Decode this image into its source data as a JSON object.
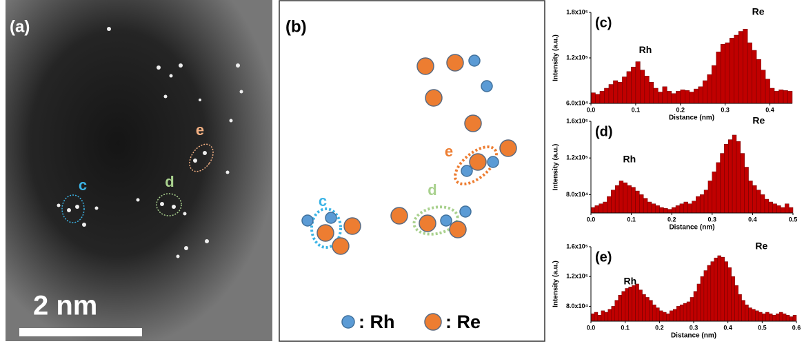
{
  "panel_a": {
    "label": "(a)",
    "ellipse_labels": [
      "c",
      "d",
      "e"
    ],
    "scale_bar": "2 nm"
  },
  "panel_b": {
    "label": "(b)",
    "ellipse_labels": [
      "c",
      "d",
      "e"
    ],
    "legend": [
      ": Rh",
      ": Re"
    ]
  },
  "chart_data": [
    {
      "type": "histogram",
      "label": "(c)",
      "xlabel": "Distance (nm)",
      "ylabel": "Intensity (a.u.)",
      "annotations": [
        "Rh",
        "Re"
      ],
      "color": "#c00000",
      "bins": [
        0,
        0.01,
        0.02,
        0.03,
        0.04,
        0.05,
        0.06,
        0.07,
        0.08,
        0.09,
        0.1,
        0.11,
        0.12,
        0.13,
        0.14,
        0.15,
        0.16,
        0.17,
        0.18,
        0.19,
        0.2,
        0.21,
        0.22,
        0.23,
        0.24,
        0.25,
        0.26,
        0.27,
        0.28,
        0.29,
        0.3,
        0.31,
        0.32,
        0.33,
        0.34,
        0.35,
        0.36,
        0.37,
        0.38,
        0.39,
        0.4,
        0.41,
        0.42,
        0.43,
        0.44,
        0.45
      ],
      "values": [
        74000,
        72000,
        76000,
        80000,
        85000,
        90000,
        88000,
        95000,
        102000,
        108000,
        115000,
        104000,
        96000,
        88000,
        80000,
        75000,
        82000,
        76000,
        73000,
        76000,
        78000,
        77000,
        75000,
        79000,
        82000,
        90000,
        98000,
        110000,
        128000,
        138000,
        140000,
        146000,
        150000,
        155000,
        158000,
        140000,
        130000,
        118000,
        104000,
        92000,
        80000,
        76000,
        78000,
        77000,
        76000
      ],
      "xlim": [
        0,
        0.45
      ],
      "xticks": [
        {
          "value": 0,
          "label": "0.0"
        },
        0.1,
        0.2,
        0.3,
        0.4
      ],
      "ylim": [
        60000,
        180000
      ],
      "yticks": [
        {
          "value": 60000,
          "label": "6.0x10⁴"
        },
        {
          "value": 120000,
          "label": "1.2x10⁵"
        },
        {
          "value": 180000,
          "label": "1.8x10⁵"
        }
      ]
    },
    {
      "type": "histogram",
      "label": "(d)",
      "xlabel": "Distance (nm)",
      "ylabel": "Intensity (a.u.)",
      "annotations": [
        "Rh",
        "Re"
      ],
      "color": "#c00000",
      "bins": [
        0,
        0.01,
        0.02,
        0.03,
        0.04,
        0.05,
        0.06,
        0.07,
        0.08,
        0.09,
        0.1,
        0.11,
        0.12,
        0.13,
        0.14,
        0.15,
        0.16,
        0.17,
        0.18,
        0.19,
        0.2,
        0.21,
        0.22,
        0.23,
        0.24,
        0.25,
        0.26,
        0.27,
        0.28,
        0.29,
        0.3,
        0.31,
        0.32,
        0.33,
        0.34,
        0.35,
        0.36,
        0.37,
        0.38,
        0.39,
        0.4,
        0.41,
        0.42,
        0.43,
        0.44,
        0.45,
        0.46,
        0.47,
        0.48,
        0.49,
        0.5
      ],
      "values": [
        66000,
        68000,
        70000,
        72000,
        78000,
        85000,
        90000,
        95000,
        93000,
        90000,
        88000,
        84000,
        80000,
        76000,
        72000,
        70000,
        68000,
        66000,
        65000,
        64000,
        66000,
        68000,
        70000,
        72000,
        70000,
        73000,
        78000,
        80000,
        85000,
        95000,
        105000,
        115000,
        125000,
        135000,
        140000,
        145000,
        138000,
        125000,
        110000,
        95000,
        90000,
        85000,
        80000,
        75000,
        72000,
        70000,
        68000,
        66000,
        70000,
        66000
      ],
      "xlim": [
        0,
        0.5
      ],
      "xticks": [
        {
          "value": 0,
          "label": "0.0"
        },
        0.1,
        0.2,
        0.3,
        0.4,
        0.5
      ],
      "ylim": [
        60000,
        160000
      ],
      "yticks": [
        {
          "value": 80000,
          "label": "8.0x10⁴"
        },
        {
          "value": 120000,
          "label": "1.2x10⁵"
        },
        {
          "value": 160000,
          "label": "1.6x10⁵"
        }
      ]
    },
    {
      "type": "histogram",
      "label": "(e)",
      "xlabel": "Distance (nm)",
      "ylabel": "Intensity (a.u.)",
      "annotations": [
        "Rh",
        "Re"
      ],
      "color": "#c00000",
      "bins": [
        0,
        0.01,
        0.02,
        0.03,
        0.04,
        0.05,
        0.06,
        0.07,
        0.08,
        0.09,
        0.1,
        0.11,
        0.12,
        0.13,
        0.14,
        0.15,
        0.16,
        0.17,
        0.18,
        0.19,
        0.2,
        0.21,
        0.22,
        0.23,
        0.24,
        0.25,
        0.26,
        0.27,
        0.28,
        0.29,
        0.3,
        0.31,
        0.32,
        0.33,
        0.34,
        0.35,
        0.36,
        0.37,
        0.38,
        0.39,
        0.4,
        0.41,
        0.42,
        0.43,
        0.44,
        0.45,
        0.46,
        0.47,
        0.48,
        0.49,
        0.5,
        0.51,
        0.52,
        0.53,
        0.54,
        0.55,
        0.56,
        0.57,
        0.58,
        0.59,
        0.6
      ],
      "values": [
        70000,
        72000,
        68000,
        74000,
        72000,
        76000,
        80000,
        88000,
        95000,
        100000,
        104000,
        106000,
        108000,
        110000,
        102000,
        96000,
        92000,
        88000,
        82000,
        78000,
        74000,
        72000,
        70000,
        74000,
        76000,
        80000,
        82000,
        84000,
        86000,
        92000,
        100000,
        110000,
        120000,
        128000,
        135000,
        140000,
        145000,
        148000,
        146000,
        140000,
        132000,
        120000,
        108000,
        96000,
        88000,
        82000,
        78000,
        76000,
        74000,
        72000,
        70000,
        72000,
        70000,
        68000,
        70000,
        72000,
        70000,
        68000,
        66000,
        68000
      ],
      "xlim": [
        0,
        0.6
      ],
      "xticks": [
        {
          "value": 0,
          "label": "0.0"
        },
        0.1,
        0.2,
        0.3,
        0.4,
        0.5,
        0.6
      ],
      "ylim": [
        60000,
        160000
      ],
      "yticks": [
        {
          "value": 80000,
          "label": "8.0x10⁴"
        },
        {
          "value": 120000,
          "label": "1.2x10⁵"
        },
        {
          "value": 160000,
          "label": "1.6x10⁵"
        }
      ]
    }
  ]
}
